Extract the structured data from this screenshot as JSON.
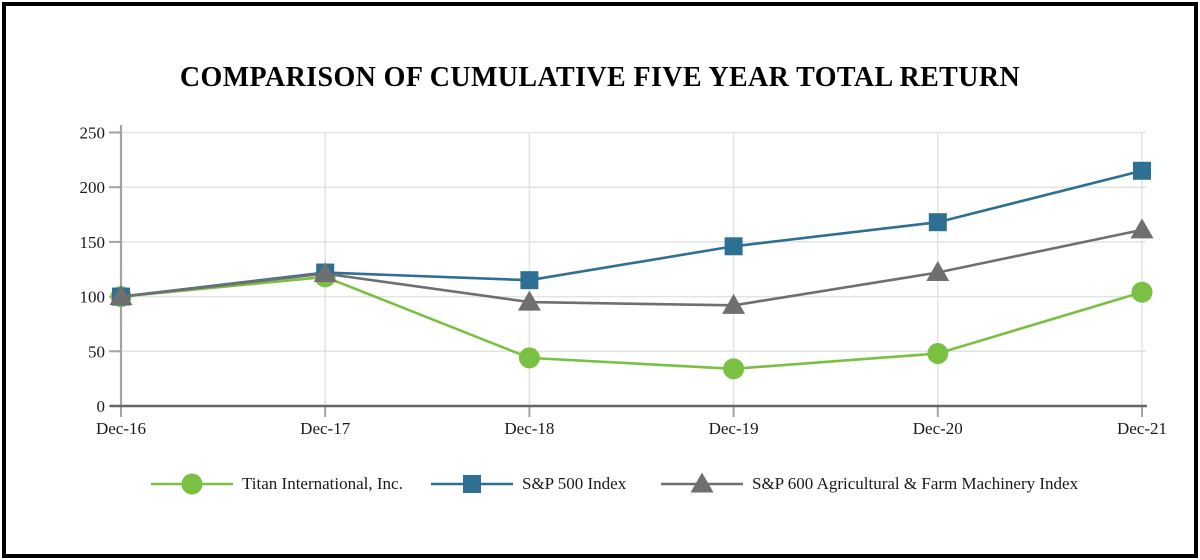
{
  "chart_data": {
    "type": "line",
    "title": "COMPARISON OF CUMULATIVE FIVE YEAR TOTAL RETURN",
    "x_labels": [
      "Dec-16",
      "Dec-17",
      "Dec-18",
      "Dec-19",
      "Dec-20",
      "Dec-21"
    ],
    "y_ticks": [
      0,
      50,
      100,
      150,
      200,
      250
    ],
    "ylim": [
      0,
      250
    ],
    "grid": true,
    "legend_position": "bottom",
    "series": [
      {
        "name": "Titan International, Inc.",
        "marker": "circle",
        "color": "#7ac143",
        "values": [
          100,
          118,
          44,
          34,
          48,
          104
        ]
      },
      {
        "name": "S&P 500 Index",
        "marker": "square",
        "color": "#2e6f94",
        "values": [
          100,
          122,
          115,
          146,
          168,
          215
        ]
      },
      {
        "name": "S&P 600 Agricultural & Farm Machinery Index",
        "marker": "triangle",
        "color": "#6f6f6f",
        "values": [
          100,
          121,
          95,
          92,
          122,
          161
        ]
      }
    ],
    "colors": {
      "gridline": "#e3e3e3",
      "axis_x": "#666666",
      "axis_y": "#a3a3a3",
      "tick": "#a3a3a3"
    }
  }
}
